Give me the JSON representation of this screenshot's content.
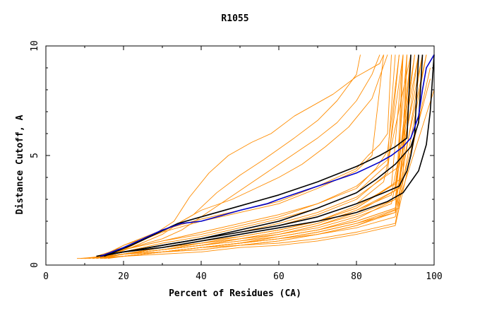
{
  "chart_data": {
    "type": "line",
    "title": "R1055",
    "xlabel": "Percent of Residues (CA)",
    "ylabel": "Distance Cutoff, A",
    "xlim": [
      0,
      100
    ],
    "ylim": [
      0,
      10
    ],
    "x_ticks": [
      0,
      20,
      40,
      60,
      80,
      100
    ],
    "y_ticks": [
      0,
      5,
      10
    ],
    "grid": false,
    "series_colors": {
      "models": "#ff8c00",
      "reference": "#000000",
      "highlight": "#0000cc"
    },
    "background_series": [
      {
        "x": [
          14,
          20,
          30,
          40,
          50,
          60,
          70,
          80,
          84,
          87
        ],
        "y": [
          0.3,
          0.9,
          1.5,
          2.0,
          2.4,
          2.8,
          3.5,
          4.3,
          5.0,
          9.6
        ]
      },
      {
        "x": [
          13,
          20,
          30,
          40,
          50,
          60,
          70,
          80,
          83,
          86,
          88,
          89
        ],
        "y": [
          0.3,
          0.9,
          1.6,
          2.1,
          2.5,
          2.9,
          3.6,
          4.4,
          5.0,
          5.5,
          6.0,
          9.6
        ]
      },
      {
        "x": [
          12,
          20,
          30,
          40,
          50,
          60,
          70,
          80,
          88,
          90
        ],
        "y": [
          0.3,
          0.7,
          1.1,
          1.4,
          1.8,
          2.2,
          2.8,
          3.6,
          4.8,
          9.6
        ]
      },
      {
        "x": [
          11,
          20,
          30,
          40,
          50,
          60,
          70,
          80,
          88,
          91
        ],
        "y": [
          0.3,
          0.6,
          0.9,
          1.2,
          1.5,
          1.8,
          2.3,
          3.0,
          4.2,
          9.6
        ]
      },
      {
        "x": [
          10,
          20,
          30,
          40,
          50,
          60,
          70,
          80,
          89,
          92
        ],
        "y": [
          0.3,
          0.5,
          0.8,
          1.1,
          1.3,
          1.6,
          2.0,
          2.6,
          3.6,
          9.6
        ]
      },
      {
        "x": [
          10,
          20,
          30,
          40,
          50,
          60,
          70,
          80,
          90,
          93
        ],
        "y": [
          0.3,
          0.5,
          0.7,
          0.9,
          1.2,
          1.4,
          1.8,
          2.4,
          3.4,
          9.6
        ]
      },
      {
        "x": [
          9,
          20,
          30,
          40,
          50,
          60,
          70,
          80,
          90,
          94
        ],
        "y": [
          0.3,
          0.4,
          0.6,
          0.8,
          1.0,
          1.3,
          1.6,
          2.1,
          3.0,
          9.6
        ]
      },
      {
        "x": [
          8,
          20,
          30,
          40,
          50,
          60,
          70,
          80,
          90,
          95
        ],
        "y": [
          0.3,
          0.4,
          0.6,
          0.7,
          0.9,
          1.1,
          1.4,
          1.8,
          2.5,
          9.6
        ]
      },
      {
        "x": [
          12,
          20,
          30,
          40,
          50,
          60,
          70,
          80,
          90,
          96
        ],
        "y": [
          0.3,
          0.5,
          0.7,
          0.9,
          1.1,
          1.3,
          1.6,
          2.0,
          2.6,
          9.6
        ]
      },
      {
        "x": [
          13,
          20,
          30,
          40,
          50,
          60,
          70,
          80,
          90,
          97
        ],
        "y": [
          0.3,
          0.5,
          0.6,
          0.8,
          0.9,
          1.1,
          1.4,
          1.7,
          2.2,
          9.6
        ]
      },
      {
        "x": [
          14,
          20,
          30,
          40,
          50,
          60,
          70,
          80,
          90,
          98
        ],
        "y": [
          0.3,
          0.4,
          0.6,
          0.7,
          0.9,
          1.0,
          1.2,
          1.5,
          1.9,
          9.6
        ]
      },
      {
        "x": [
          15,
          20,
          30,
          40,
          50,
          60,
          70,
          80,
          90,
          99
        ],
        "y": [
          0.3,
          0.4,
          0.5,
          0.6,
          0.8,
          0.9,
          1.1,
          1.4,
          1.8,
          9.0
        ]
      },
      {
        "x": [
          12,
          20,
          30,
          40,
          50,
          60,
          70,
          80,
          91,
          92
        ],
        "y": [
          0.3,
          0.6,
          0.9,
          1.2,
          1.5,
          1.9,
          2.4,
          3.1,
          4.5,
          9.6
        ]
      },
      {
        "x": [
          11,
          20,
          30,
          40,
          50,
          60,
          70,
          80,
          92,
          93
        ],
        "y": [
          0.3,
          0.5,
          0.8,
          1.0,
          1.3,
          1.6,
          2.0,
          2.6,
          4.0,
          9.6
        ]
      },
      {
        "x": [
          13,
          20,
          30,
          40,
          50,
          60,
          70,
          80,
          91,
          94
        ],
        "y": [
          0.3,
          0.5,
          0.7,
          1.0,
          1.2,
          1.5,
          1.9,
          2.5,
          3.5,
          9.6
        ]
      },
      {
        "x": [
          14,
          20,
          30,
          40,
          50,
          60,
          70,
          80,
          90,
          95
        ],
        "y": [
          0.3,
          0.5,
          0.8,
          1.0,
          1.3,
          1.6,
          2.0,
          2.7,
          3.7,
          9.6
        ]
      },
      {
        "x": [
          10,
          20,
          30,
          40,
          50,
          60,
          70,
          80,
          89,
          96
        ],
        "y": [
          0.3,
          0.5,
          0.7,
          0.9,
          1.2,
          1.5,
          1.9,
          2.5,
          3.2,
          9.6
        ]
      },
      {
        "x": [
          9,
          20,
          30,
          40,
          50,
          60,
          70,
          80,
          89,
          97
        ],
        "y": [
          0.3,
          0.5,
          0.7,
          0.9,
          1.1,
          1.4,
          1.7,
          2.2,
          2.8,
          9.6
        ]
      },
      {
        "x": [
          15,
          20,
          30,
          40,
          50,
          60,
          70,
          80,
          91,
          93
        ],
        "y": [
          0.3,
          0.4,
          0.6,
          0.8,
          1.0,
          1.2,
          1.5,
          1.9,
          2.6,
          9.6
        ]
      },
      {
        "x": [
          16,
          20,
          30,
          40,
          50,
          60,
          70,
          80,
          90,
          92
        ],
        "y": [
          0.3,
          0.4,
          0.6,
          0.8,
          1.0,
          1.2,
          1.4,
          1.8,
          2.4,
          9.6
        ]
      },
      {
        "x": [
          12,
          20,
          30,
          40,
          50,
          60,
          70,
          80,
          88,
          92
        ],
        "y": [
          0.3,
          0.6,
          1.0,
          1.3,
          1.7,
          2.1,
          2.6,
          3.3,
          4.6,
          9.6
        ]
      },
      {
        "x": [
          13,
          20,
          30,
          40,
          50,
          60,
          70,
          80,
          85,
          88,
          91
        ],
        "y": [
          0.3,
          0.7,
          1.1,
          1.5,
          1.9,
          2.3,
          2.8,
          3.5,
          4.4,
          5.2,
          9.6
        ]
      },
      {
        "x": [
          11,
          20,
          30,
          40,
          50,
          60,
          70,
          80,
          87,
          94
        ],
        "y": [
          0.3,
          0.6,
          0.9,
          1.2,
          1.5,
          1.8,
          2.2,
          2.8,
          3.8,
          9.6
        ]
      },
      {
        "x": [
          12,
          20,
          30,
          40,
          50,
          60,
          70,
          80,
          90,
          98
        ],
        "y": [
          0.3,
          0.5,
          0.7,
          0.9,
          1.2,
          1.4,
          1.8,
          2.3,
          3.0,
          9.6
        ]
      },
      {
        "x": [
          10,
          20,
          30,
          40,
          50,
          60,
          70,
          80,
          90,
          99
        ],
        "y": [
          0.3,
          0.5,
          0.6,
          0.8,
          1.0,
          1.3,
          1.6,
          2.0,
          2.6,
          8.5
        ]
      },
      {
        "x": [
          14,
          20,
          30,
          40,
          50,
          60,
          70,
          80,
          90,
          100
        ],
        "y": [
          0.3,
          0.4,
          0.6,
          0.8,
          1.0,
          1.2,
          1.5,
          1.9,
          2.4,
          8.0
        ]
      },
      {
        "x": [
          13,
          20,
          30,
          38,
          44,
          50,
          56,
          60,
          64,
          70,
          75,
          80,
          81
        ],
        "y": [
          0.4,
          0.8,
          1.5,
          2.3,
          3.3,
          4.1,
          4.8,
          5.3,
          5.8,
          6.6,
          7.5,
          8.7,
          9.6
        ]
      },
      {
        "x": [
          15,
          20,
          27,
          33,
          37,
          42,
          47,
          53,
          58,
          64,
          68,
          74,
          80,
          86,
          87
        ],
        "y": [
          0.4,
          0.7,
          1.3,
          2.0,
          3.1,
          4.2,
          5.0,
          5.6,
          6.0,
          6.8,
          7.2,
          7.8,
          8.6,
          9.2,
          9.6
        ]
      },
      {
        "x": [
          15,
          20,
          30,
          35,
          40,
          45,
          50,
          55,
          60,
          65,
          70,
          75,
          80,
          84,
          86
        ],
        "y": [
          0.4,
          0.7,
          1.2,
          1.6,
          2.2,
          2.8,
          3.4,
          4.0,
          4.6,
          5.2,
          5.8,
          6.5,
          7.5,
          8.7,
          9.6
        ]
      },
      {
        "x": [
          16,
          22,
          30,
          35,
          40,
          48,
          54,
          60,
          66,
          72,
          78,
          84,
          88
        ],
        "y": [
          0.4,
          0.8,
          1.4,
          2.0,
          2.5,
          3.0,
          3.5,
          4.0,
          4.6,
          5.4,
          6.3,
          7.6,
          9.6
        ]
      }
    ],
    "reference_series": [
      {
        "x": [
          13,
          20,
          30,
          40,
          50,
          60,
          70,
          80,
          87,
          91,
          93,
          94,
          95,
          96
        ],
        "y": [
          0.4,
          0.6,
          0.9,
          1.2,
          1.5,
          1.8,
          2.2,
          2.8,
          3.3,
          3.6,
          4.3,
          5.0,
          6.0,
          9.6
        ]
      },
      {
        "x": [
          14,
          20,
          30,
          40,
          50,
          60,
          70,
          80,
          88,
          92,
          96,
          98,
          99,
          100
        ],
        "y": [
          0.4,
          0.6,
          0.8,
          1.1,
          1.4,
          1.7,
          2.0,
          2.4,
          2.9,
          3.3,
          4.3,
          5.5,
          7.0,
          9.6
        ]
      },
      {
        "x": [
          14,
          20,
          30,
          40,
          50,
          60,
          70,
          80,
          85,
          90,
          94,
          96,
          97
        ],
        "y": [
          0.4,
          0.6,
          0.9,
          1.2,
          1.6,
          2.0,
          2.6,
          3.3,
          3.9,
          4.6,
          5.4,
          6.5,
          9.6
        ]
      },
      {
        "x": [
          15,
          22,
          28,
          34,
          40,
          50,
          60,
          70,
          80,
          86,
          90,
          93,
          94
        ],
        "y": [
          0.4,
          0.9,
          1.4,
          1.9,
          2.2,
          2.7,
          3.2,
          3.8,
          4.5,
          5.0,
          5.4,
          5.8,
          9.6
        ]
      }
    ],
    "highlight_series": [
      {
        "x": [
          14,
          20,
          25,
          30,
          35,
          40,
          50,
          57,
          60,
          70,
          80,
          86,
          89,
          92,
          94,
          96,
          97,
          98,
          100
        ],
        "y": [
          0.4,
          0.8,
          1.2,
          1.6,
          1.9,
          2.0,
          2.5,
          2.8,
          3.0,
          3.6,
          4.2,
          4.7,
          5.0,
          5.4,
          5.8,
          6.8,
          8.0,
          9.0,
          9.6
        ]
      }
    ]
  }
}
